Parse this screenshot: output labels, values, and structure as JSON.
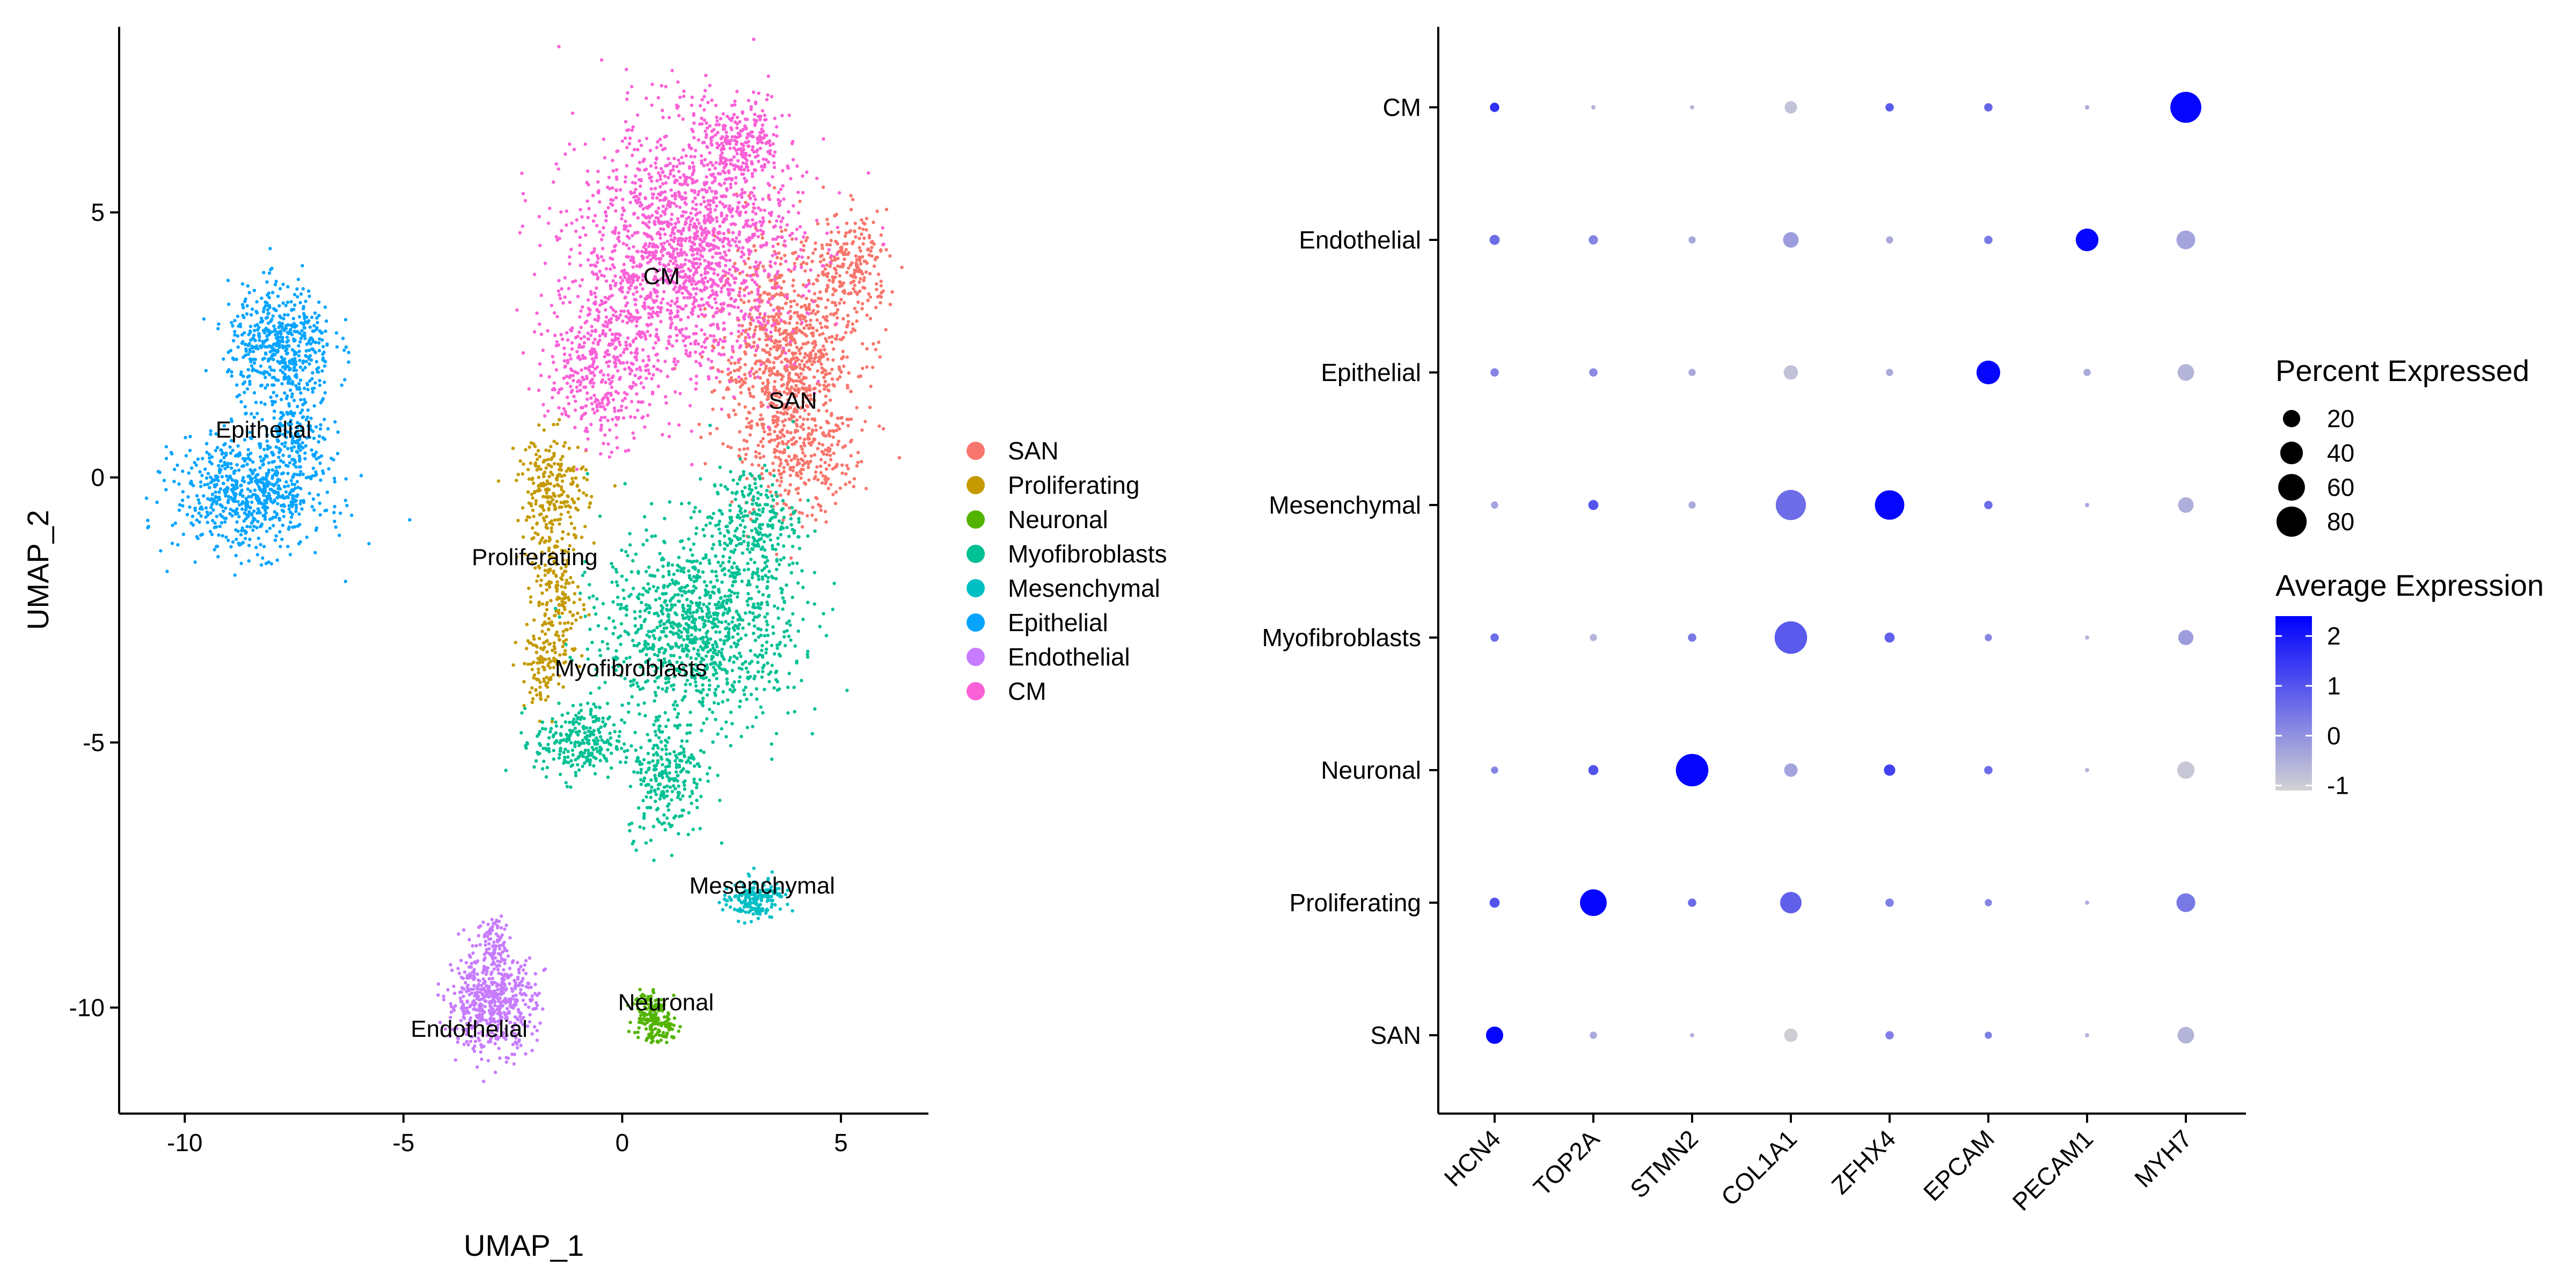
{
  "chart_data": [
    {
      "type": "scatter",
      "xlabel": "UMAP_1",
      "ylabel": "UMAP_2",
      "xlim": [
        -11.5,
        7.0
      ],
      "ylim": [
        -12.0,
        8.5
      ],
      "x_ticks": [
        -10,
        -5,
        0,
        5
      ],
      "y_ticks": [
        -10,
        -5,
        0,
        5
      ],
      "x_tick_labels": [
        "-10",
        "-5",
        "0",
        "5"
      ],
      "y_tick_labels": [
        "-10",
        "-5",
        "0",
        "5"
      ],
      "legend_position": "right",
      "grid": false,
      "series": [
        {
          "name": "SAN",
          "color": "#F8766D",
          "label_at": [
            3.9,
            1.45
          ],
          "blobs": [
            [
              3.8,
              2.2,
              1.6,
              2.2,
              1000
            ],
            [
              5.3,
              4.0,
              0.8,
              1.0,
              200
            ],
            [
              4.2,
              0.2,
              1.2,
              1.0,
              180
            ]
          ]
        },
        {
          "name": "Proliferating",
          "color": "#C49A00",
          "label_at": [
            -2.0,
            -1.5
          ],
          "blobs": [
            [
              -1.6,
              -0.2,
              0.8,
              1.0,
              230
            ],
            [
              -1.5,
              -2.4,
              0.6,
              1.5,
              220
            ],
            [
              -1.9,
              -3.6,
              0.5,
              0.7,
              70
            ]
          ]
        },
        {
          "name": "Neuronal",
          "color": "#53B400",
          "label_at": [
            1.0,
            -9.9
          ],
          "blobs": [
            [
              0.6,
              -10.1,
              0.35,
              0.55,
              140
            ],
            [
              0.95,
              -10.4,
              0.35,
              0.3,
              50
            ]
          ]
        },
        {
          "name": "Myofibroblasts",
          "color": "#00C094",
          "label_at": [
            0.2,
            -3.6
          ],
          "blobs": [
            [
              1.8,
              -2.8,
              2.2,
              1.8,
              1100
            ],
            [
              -1.0,
              -5.0,
              1.0,
              0.7,
              260
            ],
            [
              1.0,
              -5.6,
              0.9,
              1.2,
              260
            ],
            [
              3.0,
              -0.8,
              1.0,
              1.0,
              220
            ]
          ]
        },
        {
          "name": "Mesenchymal",
          "color": "#00B6EB",
          "label_at": [
            3.2,
            -7.7
          ],
          "color_override": "#00BFC4",
          "blobs": [
            [
              2.9,
              -8.0,
              0.6,
              0.35,
              140
            ],
            [
              3.3,
              -7.8,
              0.4,
              0.3,
              50
            ]
          ]
        },
        {
          "name": "Epithelial",
          "color": "#06A4FF",
          "label_at": [
            -8.2,
            0.9
          ],
          "blobs": [
            [
              -7.8,
              2.5,
              1.2,
              1.1,
              520
            ],
            [
              -8.5,
              -0.3,
              1.7,
              1.1,
              700
            ],
            [
              -7.4,
              0.9,
              0.7,
              0.8,
              140
            ]
          ]
        },
        {
          "name": "Endothelial",
          "color": "#C77CFF",
          "label_at": [
            -3.5,
            -10.4
          ],
          "blobs": [
            [
              -3.0,
              -9.9,
              1.0,
              0.9,
              560
            ],
            [
              -2.9,
              -8.7,
              0.4,
              0.5,
              80
            ]
          ]
        },
        {
          "name": "CM",
          "color": "#FB61D7",
          "label_at": [
            0.9,
            3.8
          ],
          "blobs": [
            [
              1.5,
              4.3,
              2.5,
              2.4,
              1700
            ],
            [
              -0.5,
              2.2,
              1.2,
              1.6,
              420
            ],
            [
              2.7,
              6.3,
              1.0,
              0.8,
              220
            ]
          ]
        }
      ]
    },
    {
      "type": "dotplot",
      "genes": [
        "HCN4",
        "TOP2A",
        "STMN2",
        "COL1A1",
        "ZFHX4",
        "EPCAM",
        "PECAM1",
        "MYH7"
      ],
      "clusters": [
        "CM",
        "Endothelial",
        "Epithelial",
        "Mesenchymal",
        "Myofibroblasts",
        "Neuronal",
        "Proliferating",
        "SAN"
      ],
      "percent_expressed": [
        [
          3,
          0,
          0,
          8,
          2,
          2,
          0,
          85
        ],
        [
          4,
          3,
          1,
          15,
          1,
          2,
          40,
          25
        ],
        [
          2,
          2,
          1,
          12,
          1,
          45,
          1,
          18
        ],
        [
          1,
          4,
          1,
          80,
          75,
          2,
          0,
          15
        ],
        [
          2,
          1,
          2,
          95,
          4,
          1,
          0,
          14
        ],
        [
          1,
          4,
          95,
          10,
          6,
          2,
          0,
          20
        ],
        [
          4,
          60,
          2,
          35,
          2,
          1,
          0,
          25
        ],
        [
          20,
          1,
          0,
          10,
          2,
          1,
          0,
          18
        ]
      ],
      "average_expression": [
        [
          1.6,
          -0.5,
          -0.6,
          -0.8,
          0.9,
          0.7,
          -0.4,
          2.3
        ],
        [
          0.6,
          0.2,
          -0.4,
          -0.2,
          -0.4,
          0.4,
          2.3,
          -0.3
        ],
        [
          0.2,
          0.1,
          -0.4,
          -0.8,
          -0.4,
          2.3,
          -0.4,
          -0.6
        ],
        [
          -0.3,
          1.0,
          -0.4,
          0.6,
          2.3,
          0.6,
          -0.4,
          -0.5
        ],
        [
          0.6,
          -0.6,
          0.4,
          0.9,
          0.8,
          0.2,
          -0.6,
          -0.2
        ],
        [
          0.2,
          1.0,
          2.3,
          -0.3,
          1.3,
          0.6,
          -0.6,
          -0.9
        ],
        [
          1.0,
          2.3,
          0.6,
          0.8,
          0.3,
          0.2,
          -0.5,
          0.4
        ],
        [
          2.3,
          -0.4,
          -0.5,
          -1.0,
          0.3,
          0.3,
          -0.6,
          -0.6
        ]
      ],
      "size_legend_title": "Percent Expressed",
      "size_legend_values": [
        20,
        40,
        60,
        80
      ],
      "size_legend_labels": [
        "20",
        "40",
        "60",
        "80"
      ],
      "color_legend_title": "Average Expression",
      "color_legend_ticks": [
        2,
        1,
        0,
        -1
      ],
      "color_legend_labels": [
        "2",
        "1",
        "0",
        "-1"
      ],
      "color_range": [
        -1.1,
        2.4
      ],
      "color_low": "#D3D3D3",
      "color_high": "#0000FF"
    }
  ]
}
